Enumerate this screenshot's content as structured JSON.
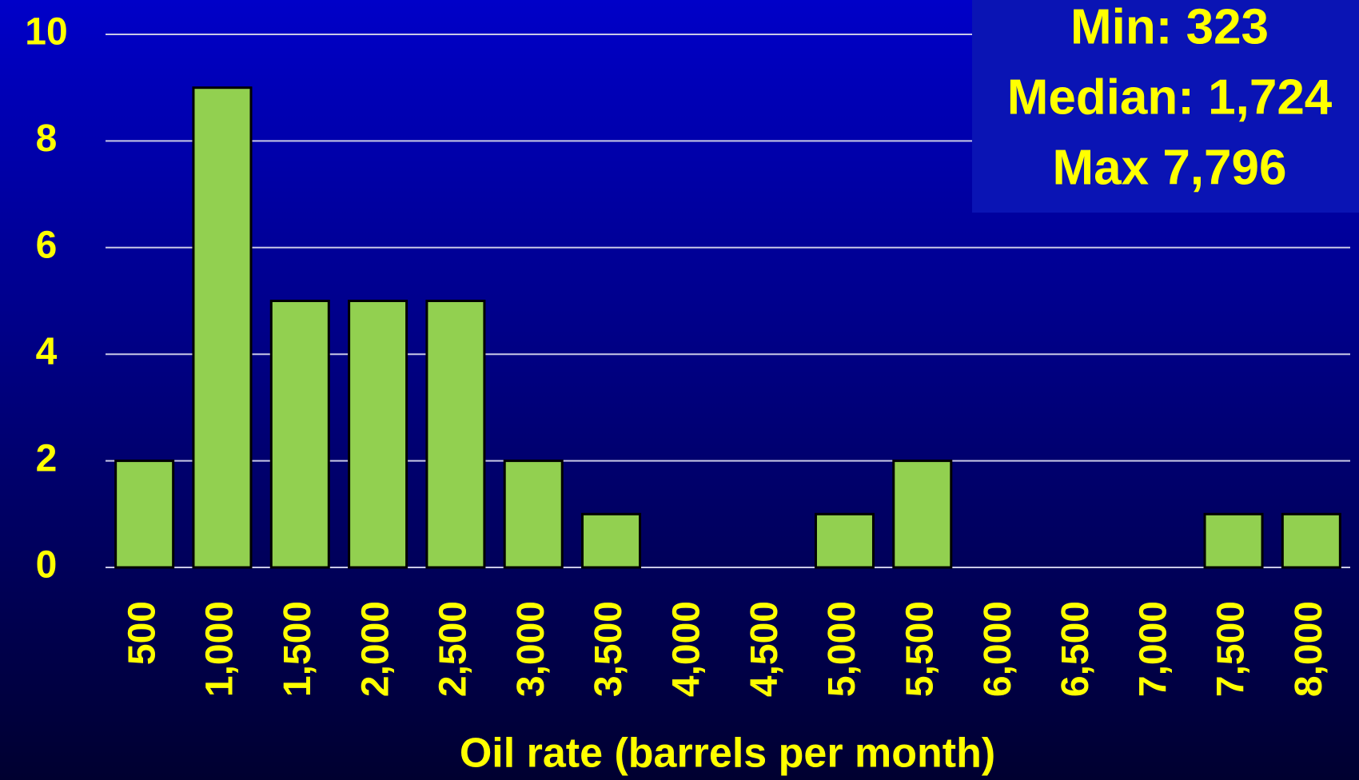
{
  "chart_data": {
    "type": "bar",
    "categories": [
      "500",
      "1,000",
      "1,500",
      "2,000",
      "2,500",
      "3,000",
      "3,500",
      "4,000",
      "4,500",
      "5,000",
      "5,500",
      "6,000",
      "6,500",
      "7,000",
      "7,500",
      "8,000"
    ],
    "values": [
      2,
      9,
      5,
      5,
      5,
      2,
      1,
      0,
      0,
      1,
      2,
      0,
      0,
      0,
      1,
      1
    ],
    "color": "#92d050",
    "x_label": "Oil rate (barrels per month)",
    "annotations": [
      "Min: 323",
      "Median: 1,724",
      "Max 7,796"
    ],
    "ylim": [
      0,
      10
    ],
    "yticks": [
      0,
      2,
      4,
      6,
      8,
      10
    ],
    "grid": true
  }
}
